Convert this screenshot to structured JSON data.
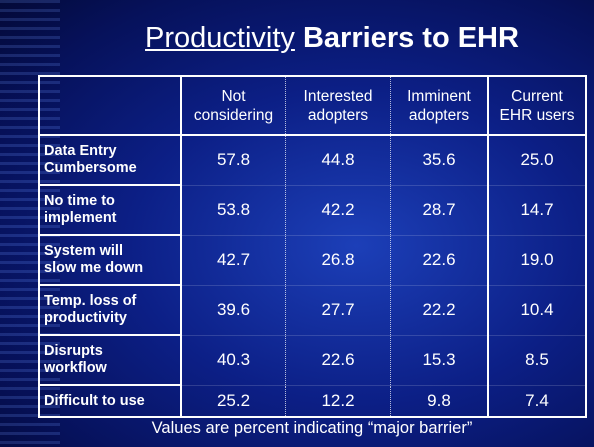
{
  "title": {
    "underlined": "Productivity",
    "bold": "Barriers to EHR"
  },
  "table": {
    "columns": [
      [
        "Not",
        "considering"
      ],
      [
        "Interested",
        "adopters"
      ],
      [
        "Imminent",
        "adopters"
      ],
      [
        "Current",
        "EHR users"
      ]
    ],
    "rows": [
      {
        "label": [
          "Data Entry",
          "Cumbersome"
        ],
        "values": [
          "57.8",
          "44.8",
          "35.6",
          "25.0"
        ]
      },
      {
        "label": [
          "No time to",
          "implement"
        ],
        "values": [
          "53.8",
          "42.2",
          "28.7",
          "14.7"
        ]
      },
      {
        "label": [
          "System will",
          "slow me down"
        ],
        "values": [
          "42.7",
          "26.8",
          "22.6",
          "19.0"
        ]
      },
      {
        "label": [
          "Temp. loss of",
          "productivity"
        ],
        "values": [
          "39.6",
          "27.7",
          "22.2",
          "10.4"
        ]
      },
      {
        "label": [
          "Disrupts",
          "workflow"
        ],
        "values": [
          "40.3",
          "22.6",
          "15.3",
          "8.5"
        ]
      },
      {
        "label": [
          "Difficult to use"
        ],
        "values": [
          "25.2",
          "12.2",
          "9.8",
          "7.4"
        ]
      }
    ]
  },
  "footnote": "Values are percent indicating “major barrier”"
}
